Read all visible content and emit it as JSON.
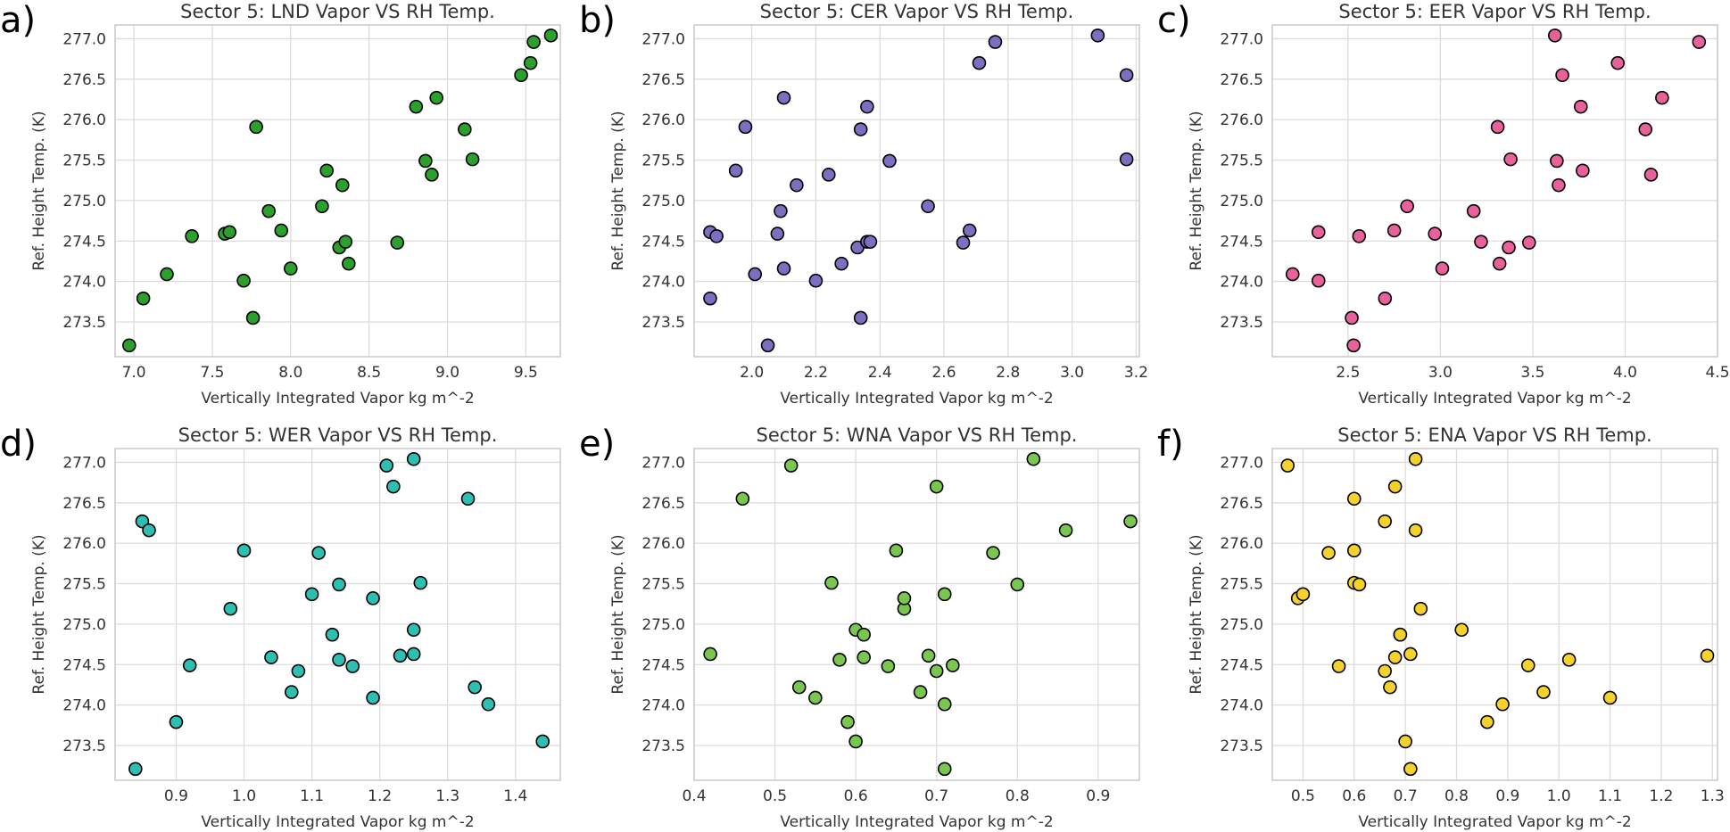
{
  "figure": {
    "xlabel": "Vertically Integrated Vapor  kg m^-2",
    "ylabel": "Ref. Height Temp. (K)"
  },
  "chart_data": [
    {
      "type": "scatter",
      "panel_label": "a)",
      "title": "Sector 5: LND Vapor VS RH Temp.",
      "xlabel": "Vertically Integrated Vapor  kg m^-2",
      "ylabel": "Ref. Height Temp. (K)",
      "xlim": [
        6.88,
        9.72
      ],
      "ylim": [
        273.07,
        277.17
      ],
      "xticks": [
        "7.0",
        "7.5",
        "8.0",
        "8.5",
        "9.0",
        "9.5"
      ],
      "yticks": [
        "273.5",
        "274.0",
        "274.5",
        "275.0",
        "275.5",
        "276.0",
        "276.5",
        "277.0"
      ],
      "color": "#2ca02c",
      "grid": true,
      "x": [
        6.97,
        7.06,
        7.21,
        7.37,
        7.58,
        7.61,
        7.7,
        7.76,
        7.78,
        7.86,
        7.94,
        8.0,
        8.2,
        8.23,
        8.31,
        8.33,
        8.35,
        8.37,
        8.68,
        8.8,
        8.86,
        8.9,
        8.93,
        9.11,
        9.16,
        9.47,
        9.53,
        9.55,
        9.66
      ],
      "y": [
        273.21,
        273.79,
        274.09,
        274.56,
        274.59,
        274.61,
        274.01,
        273.55,
        275.91,
        274.87,
        274.63,
        274.16,
        274.93,
        275.37,
        274.42,
        275.19,
        274.49,
        274.22,
        274.48,
        276.16,
        275.49,
        275.32,
        276.27,
        275.88,
        275.51,
        276.55,
        276.7,
        276.96,
        277.04
      ]
    },
    {
      "type": "scatter",
      "panel_label": "b)",
      "title": "Sector 5: CER Vapor VS RH Temp.",
      "xlabel": "Vertically Integrated Vapor  kg m^-2",
      "ylabel": "Ref. Height Temp. (K)",
      "xlim": [
        1.82,
        3.21
      ],
      "ylim": [
        273.07,
        277.17
      ],
      "xticks": [
        "2.0",
        "2.2",
        "2.4",
        "2.6",
        "2.8",
        "3.0",
        "3.2"
      ],
      "yticks": [
        "273.5",
        "274.0",
        "274.5",
        "275.0",
        "275.5",
        "276.0",
        "276.5",
        "277.0"
      ],
      "color": "#7b6fc2",
      "grid": true,
      "x": [
        1.87,
        1.87,
        1.89,
        1.95,
        1.98,
        2.01,
        2.05,
        2.08,
        2.09,
        2.1,
        2.1,
        2.14,
        2.2,
        2.24,
        2.28,
        2.33,
        2.34,
        2.34,
        2.36,
        2.36,
        2.37,
        2.43,
        2.55,
        2.66,
        2.68,
        2.71,
        2.76,
        3.08,
        3.17,
        3.17
      ],
      "y": [
        273.79,
        274.61,
        274.56,
        275.37,
        275.91,
        274.09,
        273.21,
        274.59,
        274.87,
        274.16,
        276.27,
        275.19,
        274.01,
        275.32,
        274.22,
        274.42,
        275.88,
        273.55,
        276.16,
        274.49,
        274.49,
        275.49,
        274.93,
        274.48,
        274.63,
        276.7,
        276.96,
        277.04,
        276.55,
        275.51
      ]
    },
    {
      "type": "scatter",
      "panel_label": "c)",
      "title": "Sector 5: EER Vapor VS RH Temp.",
      "xlabel": "Vertically Integrated Vapor  kg m^-2",
      "ylabel": "Ref. Height Temp. (K)",
      "xlim": [
        2.09,
        4.5
      ],
      "ylim": [
        273.07,
        277.17
      ],
      "xticks": [
        "2.5",
        "3.0",
        "3.5",
        "4.0",
        "4.5"
      ],
      "yticks": [
        "273.5",
        "274.0",
        "274.5",
        "275.0",
        "275.5",
        "276.0",
        "276.5",
        "277.0"
      ],
      "color": "#e8619a",
      "grid": true,
      "x": [
        2.2,
        2.34,
        2.34,
        2.52,
        2.53,
        2.56,
        2.7,
        2.75,
        2.82,
        2.97,
        3.01,
        3.18,
        3.22,
        3.31,
        3.32,
        3.37,
        3.38,
        3.48,
        3.62,
        3.63,
        3.64,
        3.66,
        3.76,
        3.77,
        3.96,
        4.11,
        4.14,
        4.2,
        4.4
      ],
      "y": [
        274.09,
        274.61,
        274.01,
        273.55,
        273.21,
        274.56,
        273.79,
        274.63,
        274.93,
        274.59,
        274.16,
        274.87,
        274.49,
        275.91,
        274.22,
        274.42,
        275.51,
        274.48,
        277.04,
        275.49,
        275.19,
        276.55,
        276.16,
        275.37,
        276.7,
        275.88,
        275.32,
        276.27,
        276.96
      ]
    },
    {
      "type": "scatter",
      "panel_label": "d)",
      "title": "Sector 5: WER Vapor VS RH Temp.",
      "xlabel": "Vertically Integrated Vapor  kg m^-2",
      "ylabel": "Ref. Height Temp. (K)",
      "xlim": [
        0.81,
        1.466
      ],
      "ylim": [
        273.07,
        277.17
      ],
      "xticks": [
        "0.9",
        "1.0",
        "1.1",
        "1.2",
        "1.3",
        "1.4"
      ],
      "yticks": [
        "273.5",
        "274.0",
        "274.5",
        "275.0",
        "275.5",
        "276.0",
        "276.5",
        "277.0"
      ],
      "color": "#2ebfb3",
      "grid": true,
      "x": [
        0.84,
        0.85,
        0.86,
        0.9,
        0.92,
        0.98,
        1.0,
        1.04,
        1.07,
        1.08,
        1.1,
        1.11,
        1.13,
        1.14,
        1.14,
        1.16,
        1.19,
        1.19,
        1.21,
        1.22,
        1.23,
        1.25,
        1.25,
        1.25,
        1.26,
        1.33,
        1.34,
        1.36,
        1.44
      ],
      "y": [
        273.21,
        276.27,
        276.16,
        273.79,
        274.49,
        275.19,
        275.91,
        274.59,
        274.16,
        274.42,
        275.37,
        275.88,
        274.87,
        274.56,
        275.49,
        274.48,
        274.09,
        275.32,
        276.96,
        276.7,
        274.61,
        277.04,
        274.93,
        274.63,
        275.51,
        276.55,
        274.22,
        274.01,
        273.55
      ]
    },
    {
      "type": "scatter",
      "panel_label": "e)",
      "title": "Sector 5: WNA Vapor VS RH Temp.",
      "xlabel": "Vertically Integrated Vapor  kg m^-2",
      "ylabel": "Ref. Height Temp. (K)",
      "xlim": [
        0.4,
        0.951
      ],
      "ylim": [
        273.07,
        277.17
      ],
      "xticks": [
        "0.4",
        "0.5",
        "0.6",
        "0.7",
        "0.8",
        "0.9"
      ],
      "yticks": [
        "273.5",
        "274.0",
        "274.5",
        "275.0",
        "275.5",
        "276.0",
        "276.5",
        "277.0"
      ],
      "color": "#7ac74f",
      "grid": true,
      "x": [
        0.42,
        0.46,
        0.52,
        0.53,
        0.55,
        0.57,
        0.58,
        0.59,
        0.6,
        0.6,
        0.61,
        0.61,
        0.64,
        0.65,
        0.66,
        0.66,
        0.68,
        0.69,
        0.7,
        0.7,
        0.71,
        0.71,
        0.71,
        0.72,
        0.77,
        0.8,
        0.82,
        0.86,
        0.94
      ],
      "y": [
        274.63,
        276.55,
        276.96,
        274.22,
        274.09,
        275.51,
        274.56,
        273.79,
        274.93,
        273.55,
        274.87,
        274.59,
        274.48,
        275.91,
        275.19,
        275.32,
        274.16,
        274.61,
        274.42,
        276.7,
        273.21,
        275.37,
        274.01,
        274.49,
        275.88,
        275.49,
        277.04,
        276.16,
        276.27
      ]
    },
    {
      "type": "scatter",
      "panel_label": "f)",
      "title": "Sector 5: ENA Vapor VS RH Temp.",
      "xlabel": "Vertically Integrated Vapor  kg m^-2",
      "ylabel": "Ref. Height Temp. (K)",
      "xlim": [
        0.44,
        1.31
      ],
      "ylim": [
        273.07,
        277.17
      ],
      "xticks": [
        "0.5",
        "0.6",
        "0.7",
        "0.8",
        "0.9",
        "1.0",
        "1.1",
        "1.2",
        "1.3"
      ],
      "yticks": [
        "273.5",
        "274.0",
        "274.5",
        "275.0",
        "275.5",
        "276.0",
        "276.5",
        "277.0"
      ],
      "color": "#f5d22b",
      "grid": true,
      "x": [
        0.47,
        0.49,
        0.5,
        0.55,
        0.57,
        0.6,
        0.6,
        0.6,
        0.61,
        0.66,
        0.66,
        0.67,
        0.68,
        0.68,
        0.69,
        0.69,
        0.7,
        0.71,
        0.71,
        0.72,
        0.72,
        0.73,
        0.81,
        0.86,
        0.89,
        0.94,
        0.97,
        1.02,
        1.1,
        1.29
      ],
      "y": [
        276.96,
        275.32,
        275.37,
        275.88,
        274.48,
        275.51,
        276.55,
        275.91,
        275.49,
        276.27,
        274.42,
        274.22,
        274.59,
        276.7,
        274.87,
        274.87,
        273.55,
        273.21,
        274.63,
        277.04,
        276.16,
        275.19,
        274.93,
        273.79,
        274.01,
        274.49,
        274.16,
        274.56,
        274.09,
        274.61
      ]
    }
  ]
}
